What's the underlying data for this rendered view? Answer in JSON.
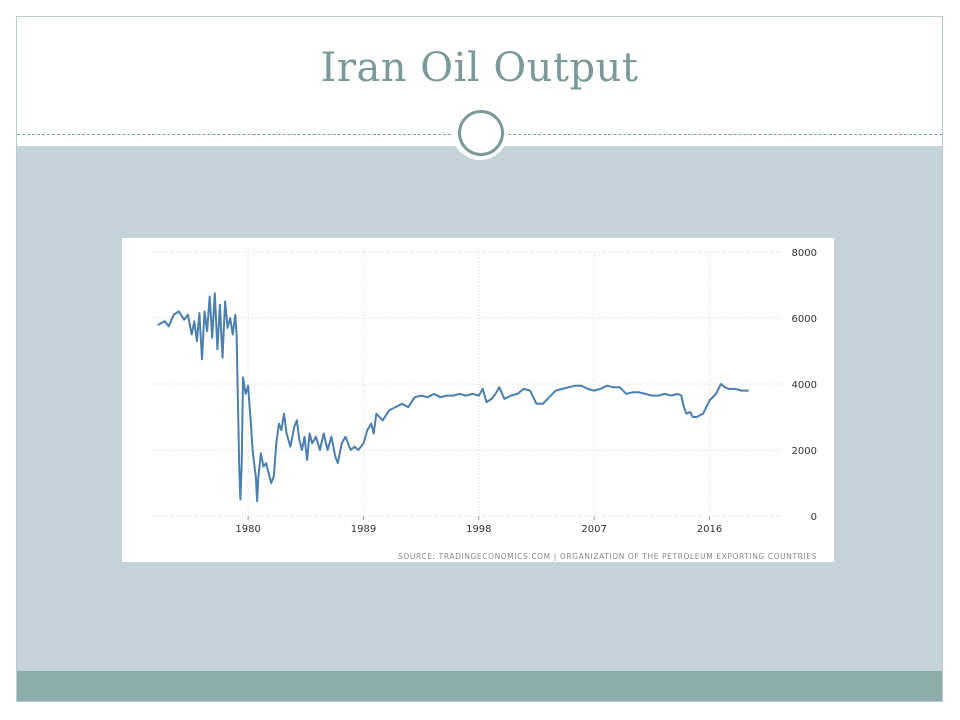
{
  "slide": {
    "title": "Iran Oil Output",
    "accent_color": "#7b9996",
    "band_color": "#c5d2d7",
    "footer_color": "#8dadab"
  },
  "chart_data": {
    "type": "line",
    "title": "",
    "xlabel": "",
    "ylabel": "",
    "xlim": [
      1972.5,
      2021.5
    ],
    "ylim": [
      0,
      8000
    ],
    "x_ticks": [
      1980,
      1989,
      1998,
      2007,
      2016
    ],
    "x_tick_labels": [
      "1980",
      "1989",
      "1998",
      "2007",
      "2016"
    ],
    "y_ticks": [
      0,
      2000,
      4000,
      6000,
      8000
    ],
    "y_tick_labels": [
      "0",
      "2000",
      "4000",
      "6000",
      "8000"
    ],
    "grid": true,
    "legend": false,
    "line_color": "#4a7fb0",
    "source": "SOURCE: TRADINGECONOMICS.COM | ORGANIZATION OF THE PETROLEUM EXPORTING COUNTRIES",
    "series": [
      {
        "values": [
          [
            1973.0,
            5800
          ],
          [
            1973.5,
            5900
          ],
          [
            1973.8,
            5750
          ],
          [
            1974.2,
            6100
          ],
          [
            1974.6,
            6200
          ],
          [
            1975.0,
            5950
          ],
          [
            1975.3,
            6100
          ],
          [
            1975.6,
            5500
          ],
          [
            1975.8,
            5900
          ],
          [
            1976.0,
            5300
          ],
          [
            1976.2,
            6150
          ],
          [
            1976.4,
            4750
          ],
          [
            1976.6,
            6200
          ],
          [
            1976.8,
            5600
          ],
          [
            1977.0,
            6650
          ],
          [
            1977.2,
            5400
          ],
          [
            1977.4,
            6750
          ],
          [
            1977.6,
            5050
          ],
          [
            1977.8,
            6400
          ],
          [
            1978.0,
            4800
          ],
          [
            1978.2,
            6500
          ],
          [
            1978.4,
            5700
          ],
          [
            1978.6,
            6000
          ],
          [
            1978.8,
            5500
          ],
          [
            1979.0,
            6100
          ],
          [
            1979.1,
            5500
          ],
          [
            1979.2,
            3500
          ],
          [
            1979.3,
            1500
          ],
          [
            1979.4,
            500
          ],
          [
            1979.5,
            1600
          ],
          [
            1979.6,
            4200
          ],
          [
            1979.8,
            3700
          ],
          [
            1980.0,
            3950
          ],
          [
            1980.1,
            3400
          ],
          [
            1980.2,
            2900
          ],
          [
            1980.35,
            2000
          ],
          [
            1980.5,
            1500
          ],
          [
            1980.6,
            1200
          ],
          [
            1980.7,
            450
          ],
          [
            1980.8,
            1200
          ],
          [
            1981.0,
            1900
          ],
          [
            1981.2,
            1500
          ],
          [
            1981.4,
            1600
          ],
          [
            1981.6,
            1300
          ],
          [
            1981.8,
            1000
          ],
          [
            1982.0,
            1200
          ],
          [
            1982.2,
            2200
          ],
          [
            1982.4,
            2800
          ],
          [
            1982.6,
            2600
          ],
          [
            1982.8,
            3100
          ],
          [
            1983.0,
            2500
          ],
          [
            1983.3,
            2100
          ],
          [
            1983.6,
            2700
          ],
          [
            1983.8,
            2900
          ],
          [
            1984.0,
            2300
          ],
          [
            1984.2,
            2000
          ],
          [
            1984.4,
            2400
          ],
          [
            1984.6,
            1700
          ],
          [
            1984.8,
            2500
          ],
          [
            1985.0,
            2200
          ],
          [
            1985.3,
            2400
          ],
          [
            1985.6,
            2000
          ],
          [
            1985.9,
            2500
          ],
          [
            1986.2,
            2000
          ],
          [
            1986.5,
            2400
          ],
          [
            1986.8,
            1800
          ],
          [
            1987.0,
            1600
          ],
          [
            1987.3,
            2200
          ],
          [
            1987.6,
            2400
          ],
          [
            1988.0,
            2000
          ],
          [
            1988.3,
            2100
          ],
          [
            1988.6,
            2000
          ],
          [
            1989.0,
            2200
          ],
          [
            1989.3,
            2600
          ],
          [
            1989.6,
            2800
          ],
          [
            1989.8,
            2500
          ],
          [
            1990.0,
            3100
          ],
          [
            1990.5,
            2900
          ],
          [
            1991.0,
            3200
          ],
          [
            1991.5,
            3300
          ],
          [
            1992.0,
            3400
          ],
          [
            1992.5,
            3300
          ],
          [
            1993.0,
            3600
          ],
          [
            1993.5,
            3650
          ],
          [
            1994.0,
            3600
          ],
          [
            1994.5,
            3700
          ],
          [
            1995.0,
            3600
          ],
          [
            1995.5,
            3650
          ],
          [
            1996.0,
            3650
          ],
          [
            1996.5,
            3700
          ],
          [
            1997.0,
            3650
          ],
          [
            1997.5,
            3700
          ],
          [
            1998.0,
            3650
          ],
          [
            1998.3,
            3850
          ],
          [
            1998.6,
            3450
          ],
          [
            1999.0,
            3550
          ],
          [
            1999.3,
            3700
          ],
          [
            1999.6,
            3900
          ],
          [
            2000.0,
            3550
          ],
          [
            2000.5,
            3650
          ],
          [
            2001.0,
            3700
          ],
          [
            2001.5,
            3850
          ],
          [
            2002.0,
            3800
          ],
          [
            2002.5,
            3400
          ],
          [
            2003.0,
            3400
          ],
          [
            2003.5,
            3600
          ],
          [
            2004.0,
            3800
          ],
          [
            2004.5,
            3850
          ],
          [
            2005.0,
            3900
          ],
          [
            2005.5,
            3950
          ],
          [
            2006.0,
            3950
          ],
          [
            2006.5,
            3850
          ],
          [
            2007.0,
            3800
          ],
          [
            2007.5,
            3850
          ],
          [
            2008.0,
            3950
          ],
          [
            2008.5,
            3900
          ],
          [
            2009.0,
            3900
          ],
          [
            2009.5,
            3700
          ],
          [
            2010.0,
            3750
          ],
          [
            2010.5,
            3750
          ],
          [
            2011.0,
            3700
          ],
          [
            2011.5,
            3650
          ],
          [
            2012.0,
            3650
          ],
          [
            2012.5,
            3700
          ],
          [
            2013.0,
            3650
          ],
          [
            2013.5,
            3700
          ],
          [
            2013.8,
            3650
          ],
          [
            2014.0,
            3300
          ],
          [
            2014.2,
            3100
          ],
          [
            2014.5,
            3150
          ],
          [
            2014.7,
            3000
          ],
          [
            2015.0,
            3000
          ],
          [
            2015.5,
            3100
          ],
          [
            2016.0,
            3500
          ],
          [
            2016.5,
            3700
          ],
          [
            2016.9,
            4000
          ],
          [
            2017.2,
            3900
          ],
          [
            2017.5,
            3850
          ],
          [
            2018.0,
            3850
          ],
          [
            2018.5,
            3800
          ],
          [
            2019.0,
            3800
          ]
        ]
      }
    ]
  }
}
